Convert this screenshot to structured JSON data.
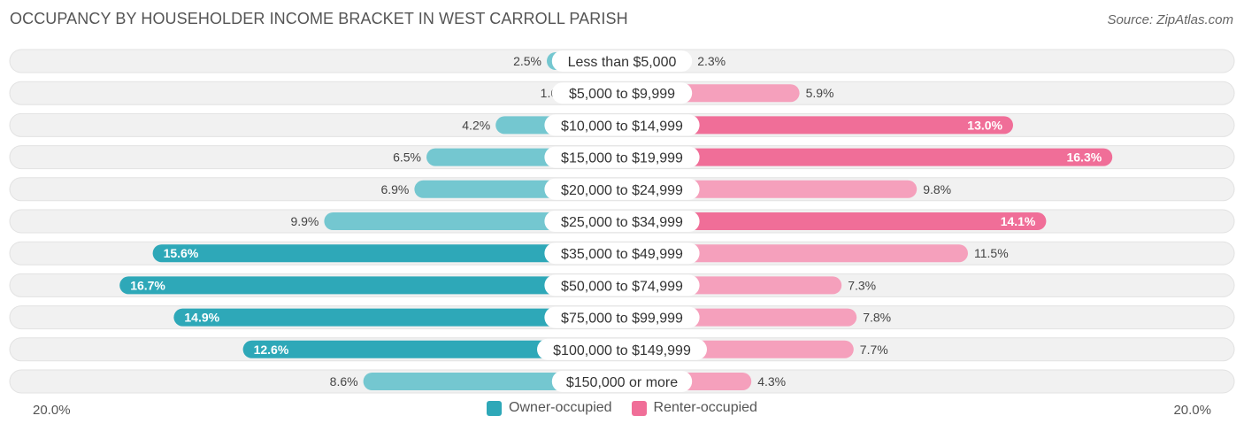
{
  "title": "OCCUPANCY BY HOUSEHOLDER INCOME BRACKET IN WEST CARROLL PARISH",
  "source": "Source: ZipAtlas.com",
  "colors": {
    "owner_light": "#74c7d0",
    "owner_dark": "#2ea8b8",
    "renter_light": "#f5a0bc",
    "renter_dark": "#f06e98",
    "track": "#eeeeee"
  },
  "axis": {
    "left_label": "20.0%",
    "right_label": "20.0%"
  },
  "legend": [
    {
      "label": "Owner-occupied",
      "color": "#2ea8b8"
    },
    {
      "label": "Renter-occupied",
      "color": "#f06e98"
    }
  ],
  "chart_data": {
    "type": "bar",
    "orientation": "diverging-horizontal",
    "xlim": [
      -20,
      20
    ],
    "categories": [
      "Less than $5,000",
      "$5,000 to $9,999",
      "$10,000 to $14,999",
      "$15,000 to $19,999",
      "$20,000 to $24,999",
      "$25,000 to $34,999",
      "$35,000 to $49,999",
      "$50,000 to $74,999",
      "$75,000 to $99,999",
      "$100,000 to $149,999",
      "$150,000 or more"
    ],
    "series": [
      {
        "name": "Owner-occupied",
        "values": [
          2.5,
          1.6,
          4.2,
          6.5,
          6.9,
          9.9,
          15.6,
          16.7,
          14.9,
          12.6,
          8.6
        ],
        "labels": [
          "2.5%",
          "1.6%",
          "4.2%",
          "6.5%",
          "6.9%",
          "9.9%",
          "15.6%",
          "16.7%",
          "14.9%",
          "12.6%",
          "8.6%"
        ]
      },
      {
        "name": "Renter-occupied",
        "values": [
          2.3,
          5.9,
          13.0,
          16.3,
          9.8,
          14.1,
          11.5,
          7.3,
          7.8,
          7.7,
          4.3
        ],
        "labels": [
          "2.3%",
          "5.9%",
          "13.0%",
          "16.3%",
          "9.8%",
          "14.1%",
          "11.5%",
          "7.3%",
          "7.8%",
          "7.7%",
          "4.3%"
        ]
      }
    ]
  }
}
